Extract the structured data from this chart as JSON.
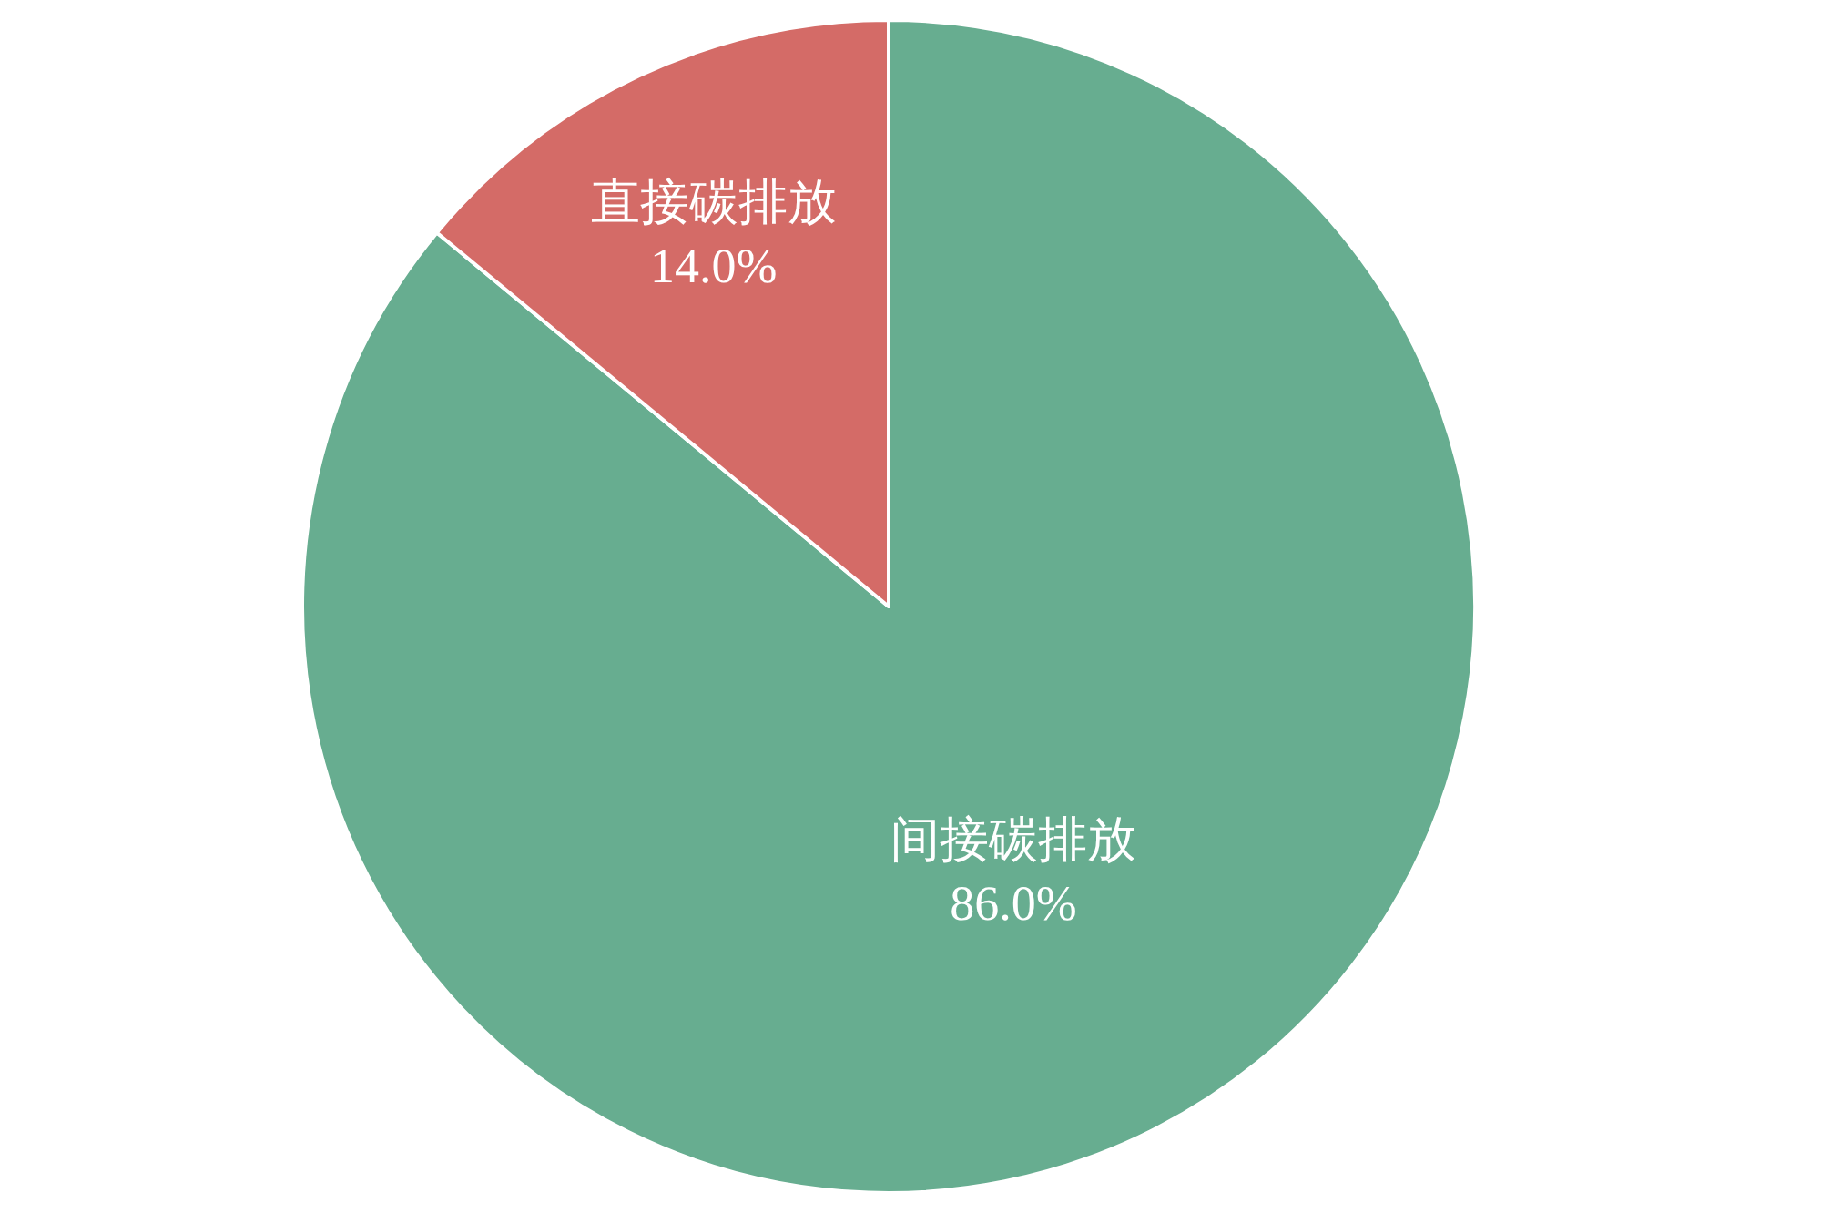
{
  "chart_data": {
    "type": "pie",
    "categories": [
      "间接碳排放",
      "直接碳排放"
    ],
    "values": [
      86.0,
      14.0
    ],
    "value_labels": [
      "86.0%",
      "14.0%"
    ],
    "colors": [
      "#67ad90",
      "#d46b67"
    ],
    "legend": false
  }
}
